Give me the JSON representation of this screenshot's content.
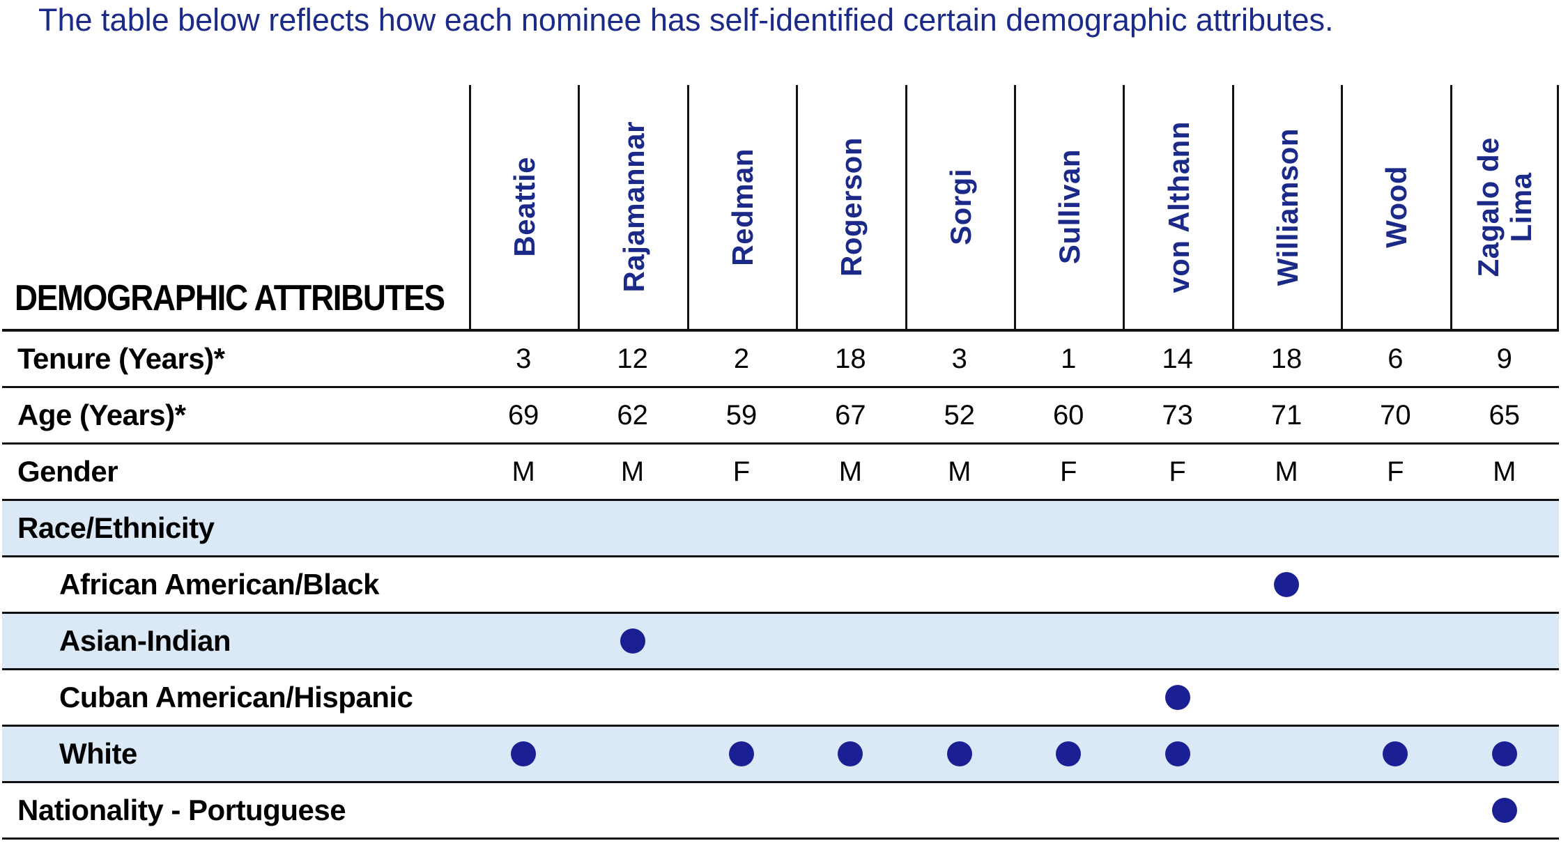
{
  "title": "The table below reflects how each nominee has self-identified certain demographic attributes.",
  "colors": {
    "navy_text": "#1b2a88",
    "navy_dot": "#1a2093",
    "shaded_row": "#dbe8f6",
    "border": "#111111"
  },
  "table": {
    "corner_label": "DEMOGRAPHIC ATTRIBUTES",
    "nominees": [
      "Beattie",
      "Rajamannar",
      "Redman",
      "Rogerson",
      "Sorgi",
      "Sullivan",
      "von Althann",
      "Williamson",
      "Wood",
      "Zagalo de\nLima"
    ],
    "rows": [
      {
        "label": "Tenure (Years)*",
        "type": "values",
        "indent": false,
        "shaded": false,
        "values": [
          "3",
          "12",
          "2",
          "18",
          "3",
          "1",
          "14",
          "18",
          "6",
          "9"
        ]
      },
      {
        "label": "Age (Years)*",
        "type": "values",
        "indent": false,
        "shaded": false,
        "values": [
          "69",
          "62",
          "59",
          "67",
          "52",
          "60",
          "73",
          "71",
          "70",
          "65"
        ]
      },
      {
        "label": "Gender",
        "type": "values",
        "indent": false,
        "shaded": false,
        "values": [
          "M",
          "M",
          "F",
          "M",
          "M",
          "F",
          "F",
          "M",
          "F",
          "M"
        ]
      },
      {
        "label": "Race/Ethnicity",
        "type": "section",
        "indent": false,
        "shaded": true
      },
      {
        "label": "African American/Black",
        "type": "dots",
        "indent": true,
        "shaded": false,
        "dots": [
          0,
          0,
          0,
          0,
          0,
          0,
          0,
          1,
          0,
          0
        ]
      },
      {
        "label": "Asian-Indian",
        "type": "dots",
        "indent": true,
        "shaded": true,
        "dots": [
          0,
          1,
          0,
          0,
          0,
          0,
          0,
          0,
          0,
          0
        ]
      },
      {
        "label": "Cuban American/Hispanic",
        "type": "dots",
        "indent": true,
        "shaded": false,
        "dots": [
          0,
          0,
          0,
          0,
          0,
          0,
          1,
          0,
          0,
          0
        ]
      },
      {
        "label": "White",
        "type": "dots",
        "indent": true,
        "shaded": true,
        "dots": [
          1,
          0,
          1,
          1,
          1,
          1,
          1,
          0,
          1,
          1
        ]
      },
      {
        "label": "Nationality - Portuguese",
        "type": "dots",
        "indent": false,
        "shaded": false,
        "dots": [
          0,
          0,
          0,
          0,
          0,
          0,
          0,
          0,
          0,
          1
        ]
      }
    ]
  }
}
